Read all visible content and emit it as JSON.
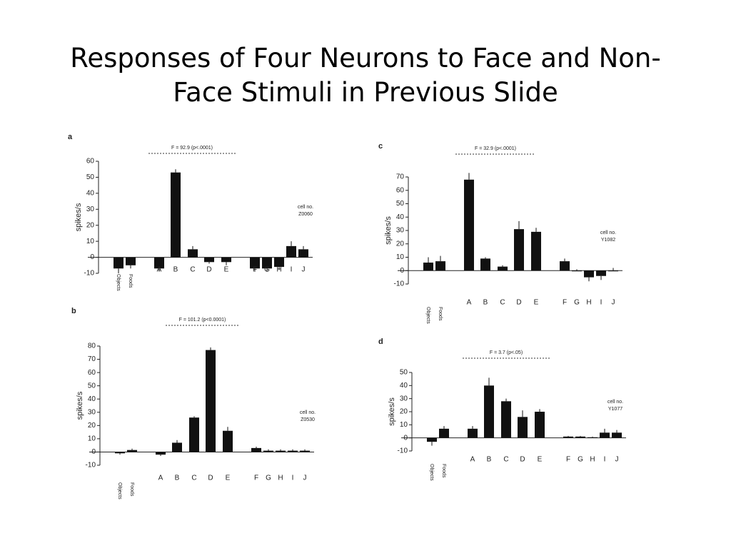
{
  "slide_title": "Responses of Four Neurons to Face and Non-Face Stimuli in Previous Slide",
  "chart_data": [
    {
      "type": "bar",
      "panel": "a",
      "ylabel": "spikes/s",
      "annotation": "F = 92.9 (p<.0001)",
      "cell_label": "cell no.",
      "cell_id": "Z0060",
      "categories": [
        "Objects",
        "Foods",
        "A",
        "B",
        "C",
        "D",
        "E",
        "F",
        "G",
        "H",
        "I",
        "J"
      ],
      "values": [
        -7,
        -5,
        -7,
        53,
        5,
        -3,
        -3,
        -7,
        -7,
        -6,
        7,
        5
      ],
      "errors": [
        3,
        2,
        2,
        2,
        2,
        1,
        2,
        2,
        2,
        2,
        3,
        2
      ],
      "color": "#111111",
      "ylim": [
        -10,
        60
      ],
      "yticks": [
        -10,
        0,
        10,
        20,
        30,
        40,
        50,
        60
      ]
    },
    {
      "type": "bar",
      "panel": "b",
      "ylabel": "spikes/s",
      "annotation": "F = 101.2 (p<0.0001)",
      "cell_label": "cell no.",
      "cell_id": "Z0530",
      "categories": [
        "Objects",
        "Foods",
        "A",
        "B",
        "C",
        "D",
        "E",
        "F",
        "G",
        "H",
        "I",
        "J"
      ],
      "values": [
        -1,
        1.5,
        -2,
        7,
        26,
        77,
        16,
        3,
        1,
        1,
        1,
        1
      ],
      "errors": [
        1,
        1,
        1,
        2,
        1,
        2,
        3,
        1,
        1,
        1,
        1,
        1
      ],
      "color": "#111111",
      "ylim": [
        -10,
        80
      ],
      "yticks": [
        -10,
        0,
        10,
        20,
        30,
        40,
        50,
        60,
        70,
        80
      ]
    },
    {
      "type": "bar",
      "panel": "c",
      "ylabel": "spikes/s",
      "annotation": "F = 32.9 (p<.0001)",
      "cell_label": "cell no.",
      "cell_id": "Y1082",
      "categories": [
        "Objects",
        "Foods",
        "A",
        "B",
        "C",
        "D",
        "E",
        "F",
        "G",
        "H",
        "I",
        "J"
      ],
      "values": [
        6,
        7,
        68,
        9,
        3,
        31,
        29,
        7,
        0,
        -5,
        -4,
        0
      ],
      "errors": [
        4,
        4,
        5,
        1,
        1,
        6,
        3,
        2,
        1,
        3,
        3,
        2
      ],
      "color": "#111111",
      "ylim": [
        -10,
        70
      ],
      "yticks": [
        -10,
        0,
        10,
        20,
        30,
        40,
        50,
        60,
        70
      ]
    },
    {
      "type": "bar",
      "panel": "d",
      "ylabel": "spikes/s",
      "annotation": "F = 3.7 (p<.05)",
      "cell_label": "cell no.",
      "cell_id": "Y1077",
      "categories": [
        "Objects",
        "Foods",
        "A",
        "B",
        "C",
        "D",
        "E",
        "F",
        "G",
        "H",
        "I",
        "J"
      ],
      "values": [
        -3,
        7,
        7,
        40,
        28,
        16,
        20,
        1,
        1,
        0.5,
        4,
        4
      ],
      "errors": [
        3,
        2,
        2,
        6,
        2,
        5,
        2,
        0.5,
        0.5,
        0.5,
        3,
        2
      ],
      "color": "#111111",
      "ylim": [
        -10,
        50
      ],
      "yticks": [
        -10,
        0,
        10,
        20,
        30,
        40,
        50
      ]
    }
  ]
}
